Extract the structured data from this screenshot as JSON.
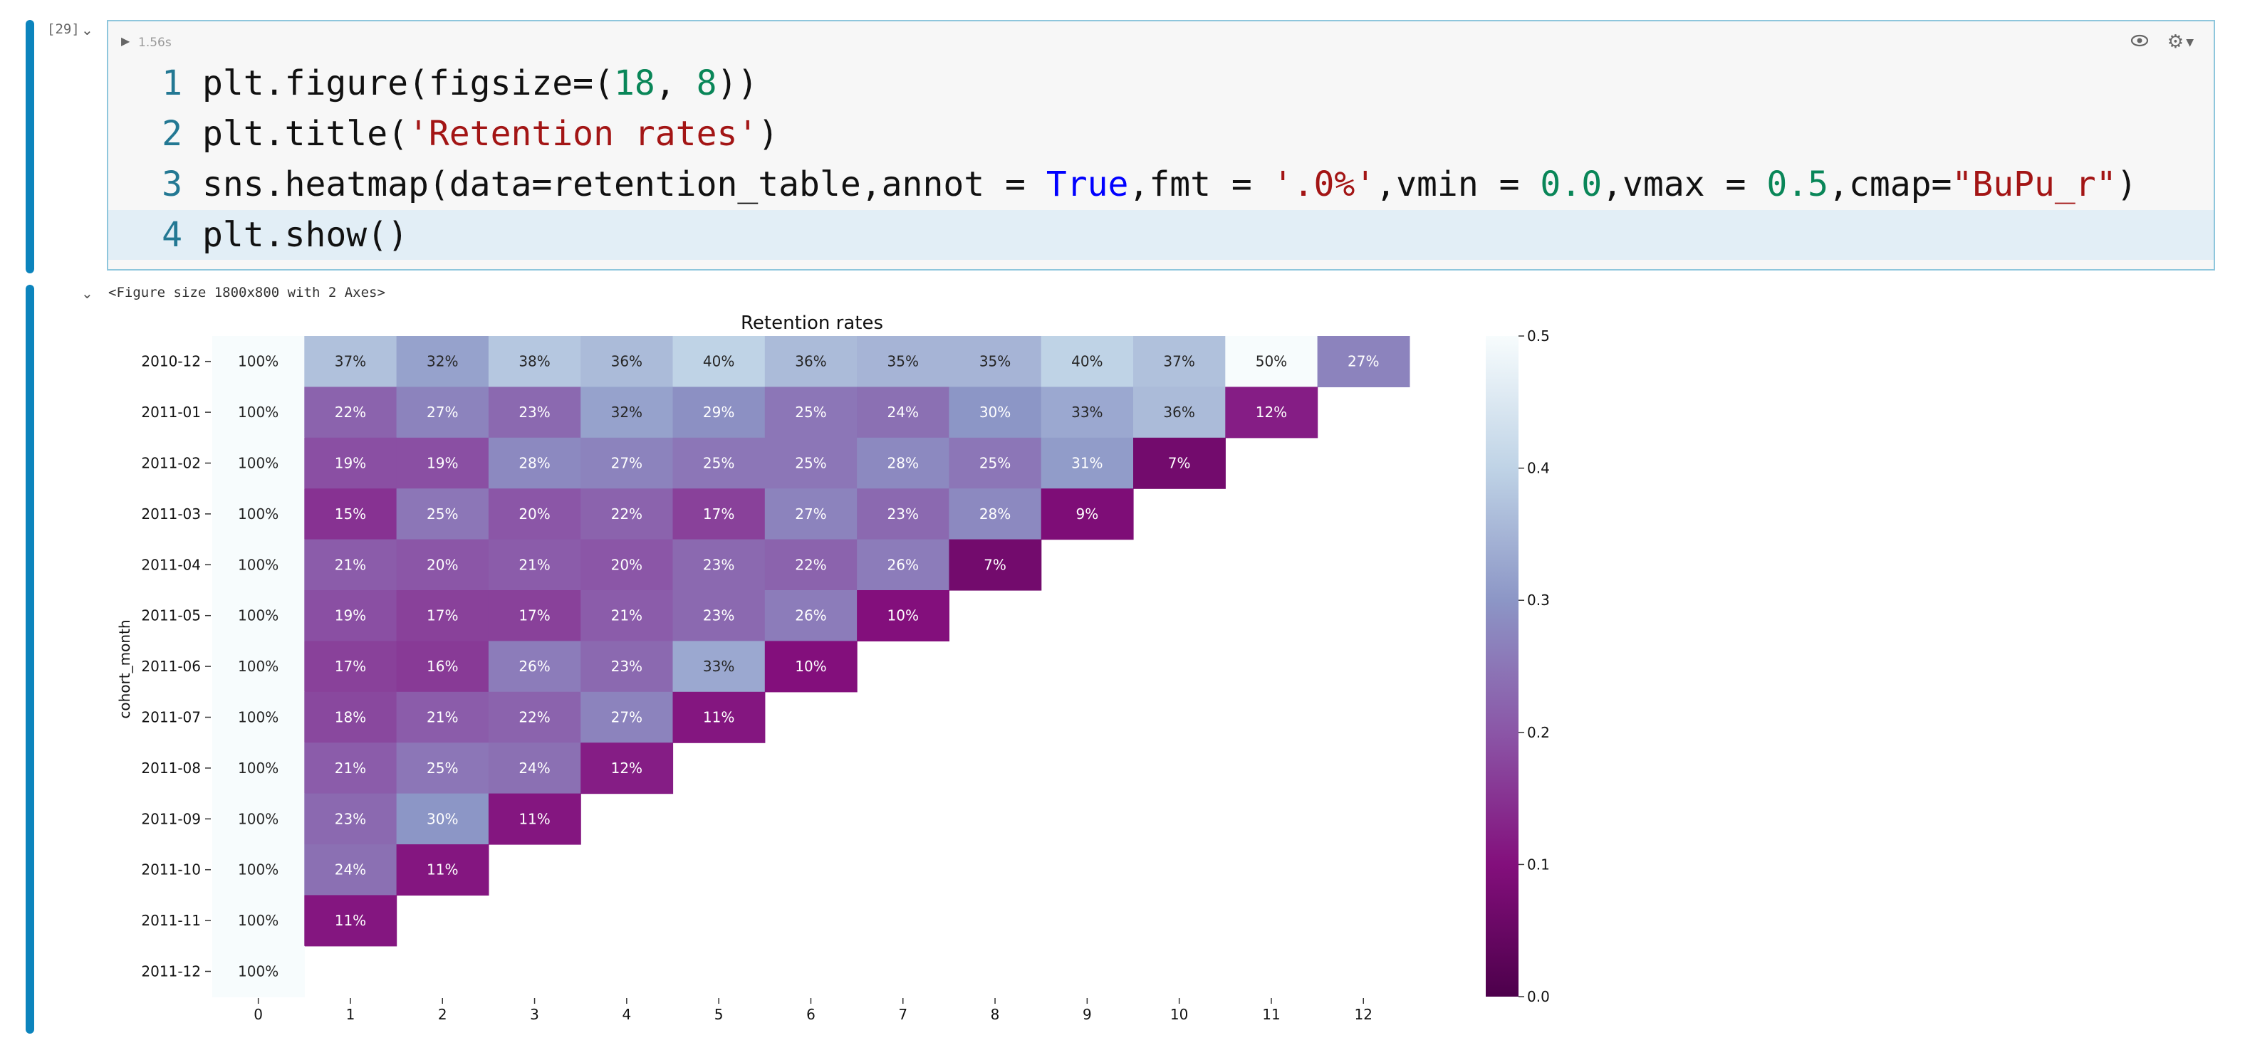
{
  "cell": {
    "execution_count": "[29]",
    "exec_time": "1.56s",
    "code_lines": [
      {
        "num": "1",
        "tokens": [
          {
            "t": "plt.figure(figsize=(",
            "c": "def"
          },
          {
            "t": "18",
            "c": "num"
          },
          {
            "t": ", ",
            "c": "def"
          },
          {
            "t": "8",
            "c": "num"
          },
          {
            "t": "))",
            "c": "def"
          }
        ]
      },
      {
        "num": "2",
        "tokens": [
          {
            "t": "plt.title(",
            "c": "def"
          },
          {
            "t": "'Retention rates'",
            "c": "str"
          },
          {
            "t": ")",
            "c": "def"
          }
        ]
      },
      {
        "num": "3",
        "tokens": [
          {
            "t": "sns.heatmap(data=retention_table,annot = ",
            "c": "def"
          },
          {
            "t": "True",
            "c": "kw"
          },
          {
            "t": ",fmt = ",
            "c": "def"
          },
          {
            "t": "'.0%'",
            "c": "str"
          },
          {
            "t": ",vmin = ",
            "c": "def"
          },
          {
            "t": "0.0",
            "c": "num"
          },
          {
            "t": ",vmax = ",
            "c": "def"
          },
          {
            "t": "0.5",
            "c": "num"
          },
          {
            "t": ",cmap=",
            "c": "def"
          },
          {
            "t": "\"BuPu_r\"",
            "c": "str"
          },
          {
            "t": ")",
            "c": "def"
          }
        ]
      },
      {
        "num": "4",
        "tokens": [
          {
            "t": "plt.show()",
            "c": "def"
          }
        ]
      }
    ]
  },
  "output": {
    "figure_label": "<Figure size 1800x800 with 2 Axes>"
  },
  "icons": {
    "run": "run-triangle-icon",
    "eye": "eye-icon",
    "tools": "cell-toolbar-icon",
    "collapse": "chevron-down-icon"
  },
  "chart_data": {
    "type": "heatmap",
    "title": "Retention rates",
    "ylabel": "cohort_month",
    "xlabel": "",
    "x": [
      "0",
      "1",
      "2",
      "3",
      "4",
      "5",
      "6",
      "7",
      "8",
      "9",
      "10",
      "11",
      "12"
    ],
    "y": [
      "2010-12",
      "2011-01",
      "2011-02",
      "2011-03",
      "2011-04",
      "2011-05",
      "2011-06",
      "2011-07",
      "2011-08",
      "2011-09",
      "2011-10",
      "2011-11",
      "2011-12"
    ],
    "values": [
      [
        1.0,
        0.37,
        0.32,
        0.38,
        0.36,
        0.4,
        0.36,
        0.35,
        0.35,
        0.4,
        0.37,
        0.5,
        0.27
      ],
      [
        1.0,
        0.22,
        0.27,
        0.23,
        0.32,
        0.29,
        0.25,
        0.24,
        0.3,
        0.33,
        0.36,
        0.12
      ],
      [
        1.0,
        0.19,
        0.19,
        0.28,
        0.27,
        0.25,
        0.25,
        0.28,
        0.25,
        0.31,
        0.07
      ],
      [
        1.0,
        0.15,
        0.25,
        0.2,
        0.22,
        0.17,
        0.27,
        0.23,
        0.28,
        0.09
      ],
      [
        1.0,
        0.21,
        0.2,
        0.21,
        0.2,
        0.23,
        0.22,
        0.26,
        0.07
      ],
      [
        1.0,
        0.19,
        0.17,
        0.17,
        0.21,
        0.23,
        0.26,
        0.1
      ],
      [
        1.0,
        0.17,
        0.16,
        0.26,
        0.23,
        0.33,
        0.1
      ],
      [
        1.0,
        0.18,
        0.21,
        0.22,
        0.27,
        0.11
      ],
      [
        1.0,
        0.21,
        0.25,
        0.24,
        0.12
      ],
      [
        1.0,
        0.23,
        0.3,
        0.11
      ],
      [
        1.0,
        0.24,
        0.11
      ],
      [
        1.0,
        0.11
      ],
      [
        1.0
      ]
    ],
    "annotation_format": ".0%",
    "vmin": 0.0,
    "vmax": 0.5,
    "colormap": "BuPu_r",
    "colorbar_ticks": [
      "0.0",
      "0.1",
      "0.2",
      "0.3",
      "0.4",
      "0.5"
    ]
  }
}
